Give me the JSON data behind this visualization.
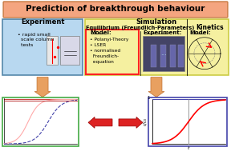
{
  "title": "Prediction of breakthrough behaviour",
  "title_bg": "#f4a580",
  "title_border": "#c87941",
  "experiment_bg": "#b8d8f0",
  "experiment_border": "#5588aa",
  "experiment_label": "Experiment",
  "experiment_text": "• rapid small\n  scale column\n  tests",
  "simulation_bg": "#f5f0a0",
  "simulation_border": "#cccc44",
  "simulation_label": "Simulation",
  "equilibrium_label": "Equilibrium (Freundlich-Parameters)",
  "kinetics_label": "Kinetics",
  "model_label": "Model:",
  "model_text": "• Polanyi-Theory\n• LSER\n• normalised\n  Freundlich-\n  equation",
  "experiment2_label": "Experiment:",
  "model2_label": "Model:",
  "model_box_color": "#ff2222",
  "arrow_color": "#e8a060",
  "red_arrow_color": "#dd2222",
  "bottom_plot_left_bg": "#ffffff",
  "bottom_plot_left_border": "#44aa44",
  "bottom_plot_right_border": "#4444aa"
}
